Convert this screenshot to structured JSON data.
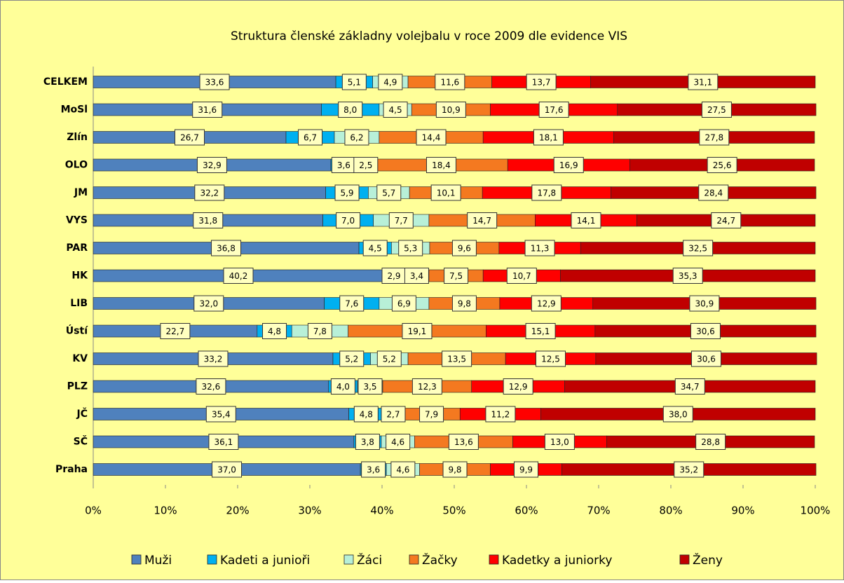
{
  "chart_data": {
    "type": "stacked-barh",
    "title": "Struktura členské základny volejbalu v roce 2009 dle evidence VIS",
    "categories": [
      "CELKEM",
      "MoSl",
      "Zlín",
      "OLO",
      "JM",
      "VYS",
      "PAR",
      "HK",
      "LIB",
      "Ústí",
      "KV",
      "PLZ",
      "JČ",
      "SČ",
      "Praha"
    ],
    "series": [
      {
        "name": "Muži",
        "color": "#4f81bd",
        "values": [
          33.6,
          31.6,
          26.7,
          32.9,
          32.2,
          31.8,
          36.8,
          40.2,
          32.0,
          22.7,
          33.2,
          32.6,
          35.4,
          36.1,
          37.0
        ],
        "value_labels": [
          "33,6",
          "31,6",
          "26,7",
          "32,9",
          "32,2",
          "31,8",
          "36,8",
          "40,2",
          "32,0",
          "22,7",
          "33,2",
          "32,6",
          "35,4",
          "36,1",
          "37,0"
        ]
      },
      {
        "name": "Kadeti a junioři",
        "color": "#00b0f0",
        "values": [
          5.1,
          8.0,
          6.7,
          3.6,
          5.9,
          7.0,
          4.5,
          2.9,
          7.6,
          4.8,
          5.2,
          4.0,
          4.8,
          3.8,
          3.6
        ],
        "value_labels": [
          "5,1",
          "8,0",
          "6,7",
          "3,6",
          "5,9",
          "7,0",
          "4,5",
          "2,9",
          "7,6",
          "4,8",
          "5,2",
          "4,0",
          "4,8",
          "3,8",
          "3,6"
        ]
      },
      {
        "name": "Žáci",
        "color": "#b8f0d8",
        "values": [
          4.9,
          4.5,
          6.2,
          2.5,
          5.7,
          7.7,
          5.3,
          3.4,
          6.9,
          7.8,
          5.2,
          3.5,
          2.7,
          4.6,
          4.6
        ],
        "value_labels": [
          "4,9",
          "4,5",
          "6,2",
          "2,5",
          "5,7",
          "7,7",
          "5,3",
          "3,4",
          "6,9",
          "7,8",
          "5,2",
          "3,5",
          "2,7",
          "4,6",
          "4,6"
        ]
      },
      {
        "name": "Žačky",
        "color": "#f47920",
        "values": [
          11.6,
          10.9,
          14.4,
          18.4,
          10.1,
          14.7,
          9.6,
          7.5,
          9.8,
          19.1,
          13.5,
          12.3,
          7.9,
          13.6,
          9.8
        ],
        "value_labels": [
          "11,6",
          "10,9",
          "14,4",
          "18,4",
          "10,1",
          "14,7",
          "9,6",
          "7,5",
          "9,8",
          "19,1",
          "13,5",
          "12,3",
          "7,9",
          "13,6",
          "9,8"
        ]
      },
      {
        "name": "Kadetky a juniorky",
        "color": "#ff0000",
        "values": [
          13.7,
          17.6,
          18.1,
          16.9,
          17.8,
          14.1,
          11.3,
          10.7,
          12.9,
          15.1,
          12.5,
          12.9,
          11.2,
          13.0,
          9.9
        ],
        "value_labels": [
          "13,7",
          "17,6",
          "18,1",
          "16,9",
          "17,8",
          "14,1",
          "11,3",
          "10,7",
          "12,9",
          "15,1",
          "12,5",
          "12,9",
          "11,2",
          "13,0",
          "9,9"
        ]
      },
      {
        "name": "Ženy",
        "color": "#c00000",
        "values": [
          31.1,
          27.5,
          27.8,
          25.6,
          28.4,
          24.7,
          32.5,
          35.3,
          30.9,
          30.6,
          30.6,
          34.7,
          38.0,
          28.8,
          35.2
        ],
        "value_labels": [
          "31,1",
          "27,5",
          "27,8",
          "25,6",
          "28,4",
          "24,7",
          "32,5",
          "35,3",
          "30,9",
          "30,6",
          "30,6",
          "34,7",
          "38,0",
          "28,8",
          "35,2"
        ]
      }
    ],
    "xlim": [
      0,
      100
    ],
    "xticks": [
      {
        "value": 0,
        "label": "0%"
      },
      {
        "value": 10,
        "label": "10%"
      },
      {
        "value": 20,
        "label": "20%"
      },
      {
        "value": 30,
        "label": "30%"
      },
      {
        "value": 40,
        "label": "40%"
      },
      {
        "value": 50,
        "label": "50%"
      },
      {
        "value": 60,
        "label": "60%"
      },
      {
        "value": 70,
        "label": "70%"
      },
      {
        "value": 80,
        "label": "80%"
      },
      {
        "value": 90,
        "label": "90%"
      },
      {
        "value": 100,
        "label": "100%"
      }
    ],
    "legend": "bottom"
  }
}
